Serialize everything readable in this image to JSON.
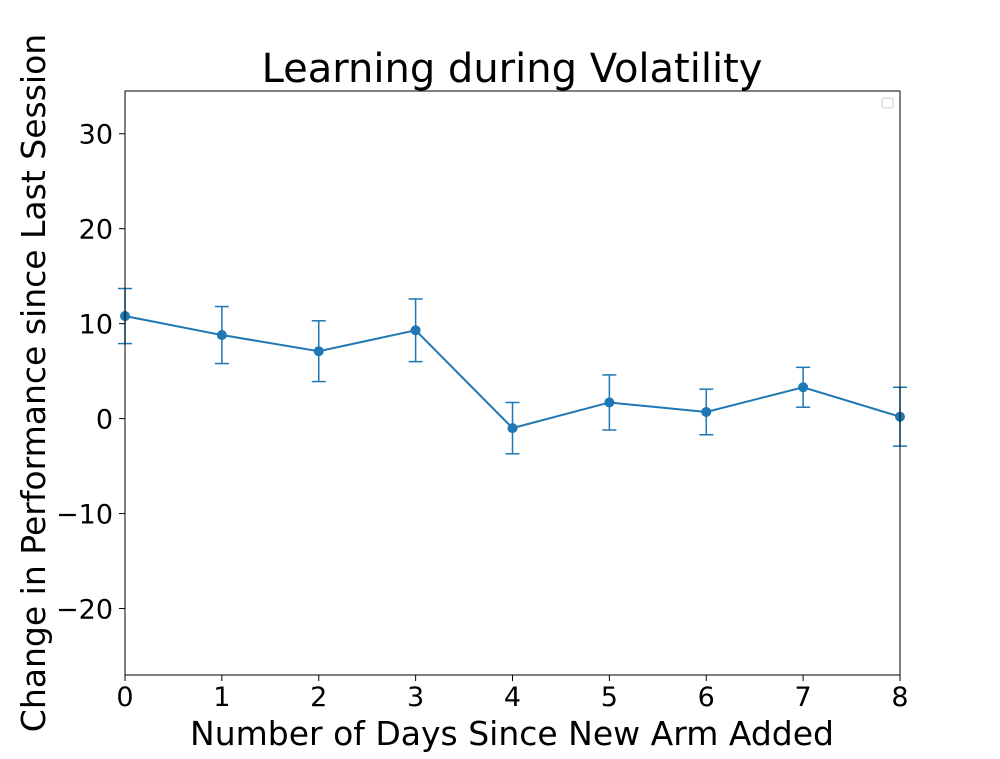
{
  "chart_data": {
    "type": "line",
    "title": "Learning during Volatility",
    "xlabel": "Number of Days Since New Arm Added",
    "ylabel": "Change in Performance since Last Session",
    "xlim": [
      0,
      8
    ],
    "ylim": [
      -27,
      34.5
    ],
    "xticks": [
      0,
      1,
      2,
      3,
      4,
      5,
      6,
      7,
      8
    ],
    "yticks": [
      -20,
      -10,
      0,
      10,
      20,
      30
    ],
    "ytick_labels": [
      "−20",
      "−10",
      "0",
      "10",
      "20",
      "30"
    ],
    "grid": false,
    "legend": "top-right, empty",
    "series": [
      {
        "color": "#1f77b4",
        "marker": "circle",
        "x": [
          0,
          1,
          2,
          3,
          4,
          5,
          6,
          7,
          8
        ],
        "y": [
          10.8,
          8.8,
          7.1,
          9.3,
          -1.0,
          1.7,
          0.7,
          3.3,
          0.2
        ],
        "error": [
          2.9,
          3.0,
          3.2,
          3.3,
          2.7,
          2.9,
          2.4,
          2.1,
          3.1
        ]
      }
    ]
  }
}
